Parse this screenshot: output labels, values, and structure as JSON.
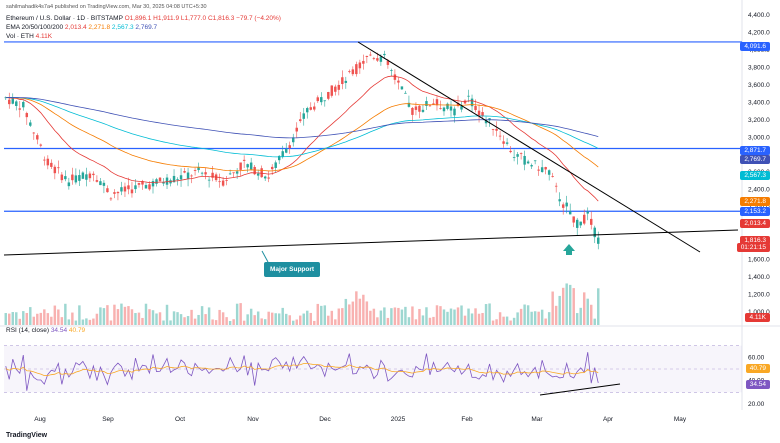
{
  "header": {
    "publisher": "sahilmahadik4s7a4 published on TradingView.com, Mar 30, 2025 04:08 UTC+5:30",
    "symbol_line": "Ethereum / U.S. Dollar · 1D · BITSTAMP",
    "ohlc": "O1,896.1 H1,911.9 L1,777.0 C1,816.3 −79.7 (−4.20%)",
    "ema_label": "EMA 20/50/100/200",
    "ema_values": [
      "2,013.4",
      "2,271.8",
      "2,567.3",
      "2,769.7"
    ],
    "vol_label": "Vol · ETH",
    "vol_value": "4.11K"
  },
  "price_axis": [
    "4,400.0",
    "4,200.0",
    "4,000.0",
    "3,800.0",
    "3,600.0",
    "3,400.0",
    "3,200.0",
    "3,000.0",
    "2,800.0",
    "2,600.0",
    "2,400.0",
    "2,200.0",
    "2,000.0",
    "1,800.0",
    "1,600.0",
    "1,400.0",
    "1,200.0",
    "1,000.0"
  ],
  "price_badges": [
    {
      "text": "4,091.6",
      "color": "#2962ff"
    },
    {
      "text": "2,871.7",
      "color": "#2962ff"
    },
    {
      "text": "2,769.7",
      "color": "#3f51b5"
    },
    {
      "text": "2,567.3",
      "color": "#00bcd4"
    },
    {
      "text": "2,271.8",
      "color": "#f57c00"
    },
    {
      "text": "2,153.2",
      "color": "#2962ff"
    },
    {
      "text": "2,013.4",
      "color": "#e53935"
    },
    {
      "text": "1,816.3",
      "color": "#e53935"
    },
    {
      "text": "01:21:15",
      "color": "#e53935"
    },
    {
      "text": "4.11K",
      "color": "#e53935"
    }
  ],
  "rsi": {
    "label": "RSI (14, close)",
    "value1": "34.54",
    "value2": "40.79",
    "axis": [
      "60.00",
      "40.00",
      "20.00"
    ]
  },
  "time_axis": [
    "Aug",
    "Sep",
    "Oct",
    "Nov",
    "Dec",
    "2025",
    "Feb",
    "Mar",
    "Apr",
    "May"
  ],
  "callout": "Major Support",
  "footer": "TradingView",
  "colors": {
    "bull": "#26a69a",
    "bear": "#ef5350",
    "level": "#2962ff",
    "ema20": "#e53935",
    "ema50": "#f57c00",
    "ema100": "#00bcd4",
    "ema200": "#3f51b5",
    "rsi": "#7e57c2"
  }
}
